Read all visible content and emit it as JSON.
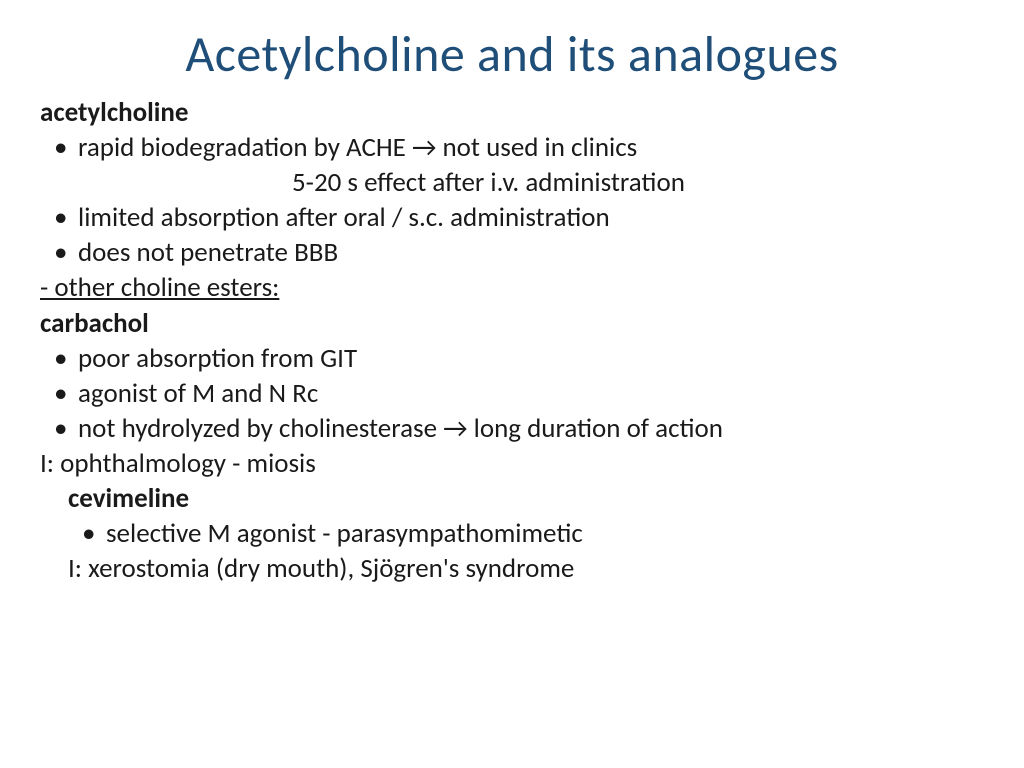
{
  "title": "Acetylcholine and its analogues",
  "section1": {
    "heading": "acetylcholine",
    "bullets": [
      "rapid biodegradation by ACHE → not used in clinics",
      "limited absorption after oral / s.c. administration",
      "does not penetrate BBB"
    ],
    "subline": "5-20 s effect after i.v. administration"
  },
  "section2_heading": "- other choline esters:",
  "section2": {
    "heading": "carbachol",
    "bullets": [
      "poor absorption from GIT",
      "agonist of M and N Rc",
      "not hydrolyzed by cholinesterase → long duration of action"
    ],
    "footer": "I: ophthalmology - miosis"
  },
  "section3": {
    "heading": "cevimeline",
    "bullets": [
      "selective M agonist - parasympathomimetic"
    ],
    "footer": "I: xerostomia (dry mouth), Sjögren's syndrome"
  },
  "colors": {
    "title": "#1f4e79",
    "body": "#1a1a1a",
    "background": "#ffffff"
  },
  "fonts": {
    "title_size": 50,
    "body_size": 27,
    "family": "Calibri"
  }
}
